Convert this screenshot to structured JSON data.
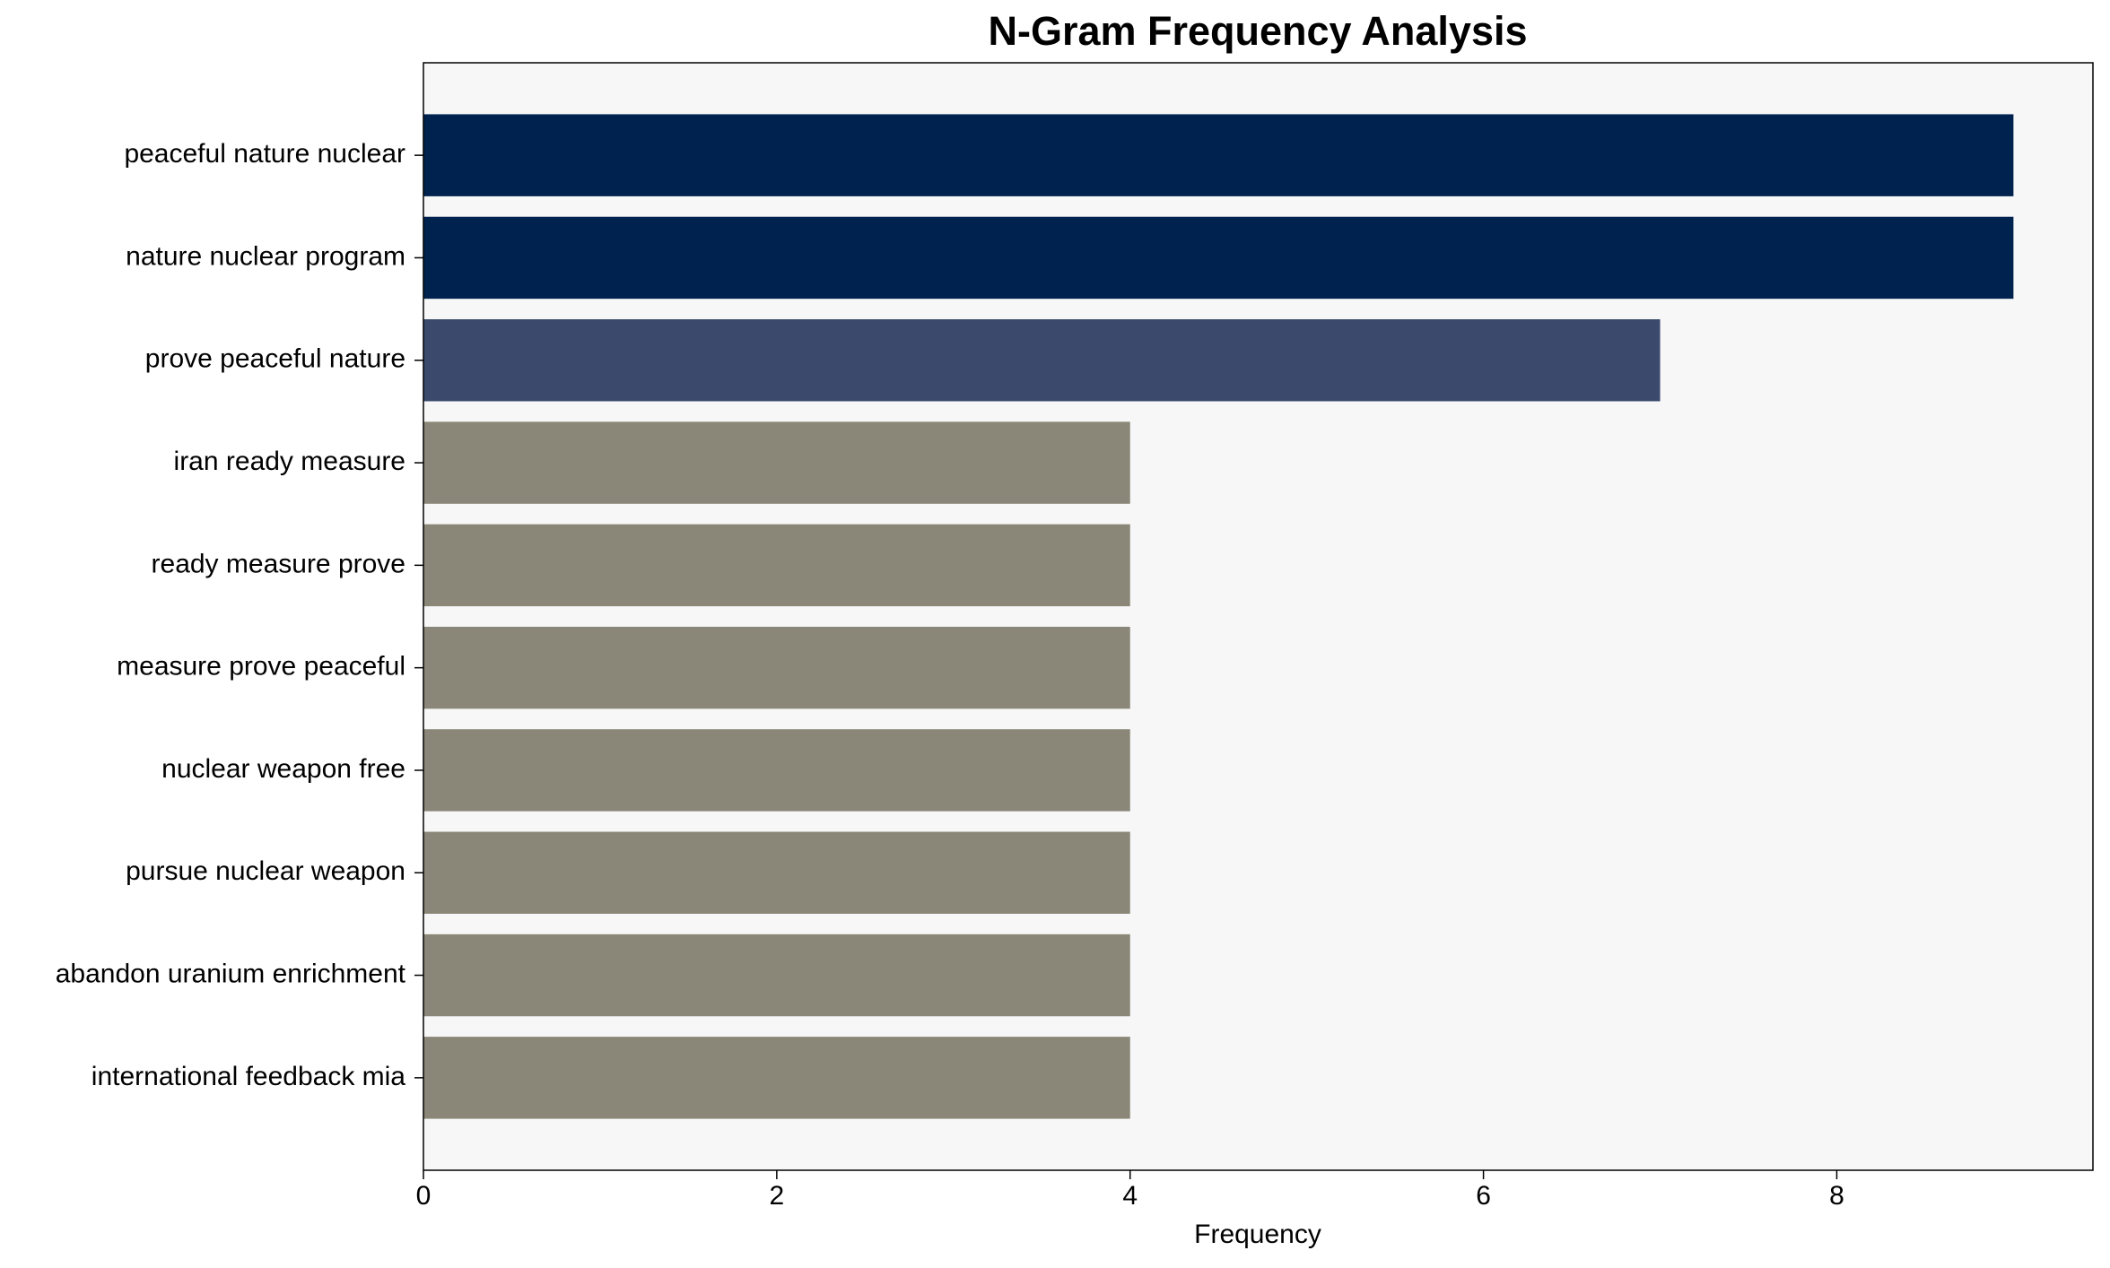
{
  "chart_data": {
    "type": "barh",
    "title": "N-Gram Frequency Analysis",
    "xlabel": "Frequency",
    "categories": [
      "peaceful nature nuclear",
      "nature nuclear program",
      "prove peaceful nature",
      "iran ready measure",
      "ready measure prove",
      "measure prove peaceful",
      "nuclear weapon free",
      "pursue nuclear weapon",
      "abandon uranium enrichment",
      "international feedback mia"
    ],
    "values": [
      9,
      9,
      7,
      4,
      4,
      4,
      4,
      4,
      4,
      4
    ],
    "colors": [
      "#00224e",
      "#00224e",
      "#3b496c",
      "#8a8778",
      "#8a8778",
      "#8a8778",
      "#8a8778",
      "#8a8778",
      "#8a8778",
      "#8a8778"
    ],
    "xlim": [
      0,
      9.45
    ],
    "xticks": [
      0,
      2,
      4,
      6,
      8
    ],
    "grid": false
  }
}
